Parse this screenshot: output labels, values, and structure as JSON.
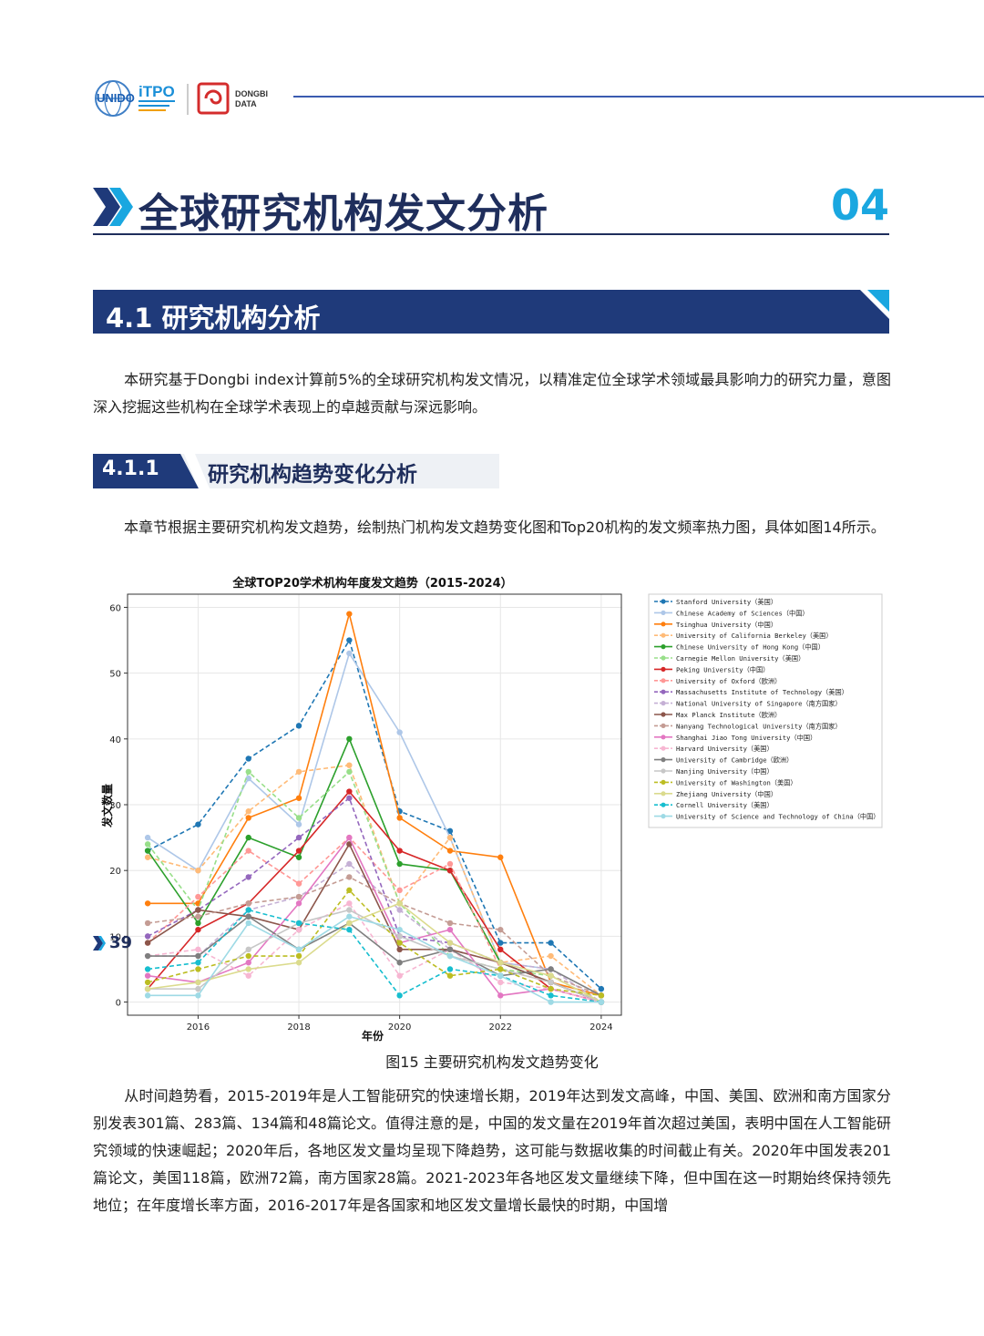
{
  "header": {
    "logos": [
      {
        "name": "UNIDO",
        "text": "UNIDO"
      },
      {
        "name": "ITPO",
        "text": "iTPO"
      },
      {
        "name": "DONGBI DATA",
        "line1": "DONGBI",
        "line2": "DATA"
      }
    ]
  },
  "chapter": {
    "title": "全球研究机构发文分析",
    "number": "04"
  },
  "section": {
    "title": "4.1 研究机构分析"
  },
  "para1": "本研究基于Dongbi index计算前5%的全球研究机构发文情况，以精准定位全球学术领域最具影响力的研究力量，意图深入挖掘这些机构在全球学术表现上的卓越贡献与深远影响。",
  "subsection": {
    "number": "4.1.1",
    "title": "研究机构趋势变化分析"
  },
  "para2": "本章节根据主要研究机构发文趋势，绘制热门机构发文趋势变化图和Top20机构的发文频率热力图，具体如图14所示。",
  "figure_caption": "图15 主要研究机构发文趋势变化",
  "para3": "从时间趋势看，2015-2019年是人工智能研究的快速增长期，2019年达到发文高峰，中国、美国、欧洲和南方国家分别发表301篇、283篇、134篇和48篇论文。值得注意的是，中国的发文量在2019年首次超过美国，表明中国在人工智能研究领域的快速崛起；2020年后，各地区发文量均呈现下降趋势，这可能与数据收集的时间截止有关。2020年中国发表201篇论文，美国118篇，欧洲72篇，南方国家28篇。2021-2023年各地区发文量继续下降，但中国在这一时期始终保持领先地位；在年度增长率方面，2016-2017年是各国家和地区发文量增长最快的时期，中国增",
  "page_number": "39",
  "chart_data": {
    "type": "line",
    "title": "全球TOP20学术机构年度发文趋势（2015-2024）",
    "xlabel": "年份",
    "ylabel": "发文数量",
    "x": [
      2015,
      2016,
      2017,
      2018,
      2019,
      2020,
      2021,
      2022,
      2023,
      2024
    ],
    "xticks": [
      2016,
      2018,
      2020,
      2022,
      2024
    ],
    "yticks": [
      0,
      10,
      20,
      30,
      40,
      50,
      60
    ],
    "ylim": [
      -2,
      62
    ],
    "xlim": [
      2014.6,
      2024.4
    ],
    "grid": true,
    "legend_position": "right-outside",
    "series": [
      {
        "name": "Stanford University（美国）",
        "color": "#1f77b4",
        "dash": true,
        "values": [
          23,
          27,
          37,
          42,
          55,
          29,
          26,
          9,
          9,
          2
        ]
      },
      {
        "name": "Chinese Academy of Sciences（中国）",
        "color": "#aec7e8",
        "dash": false,
        "values": [
          25,
          20,
          34,
          27,
          53,
          41,
          25,
          6,
          5,
          1
        ]
      },
      {
        "name": "Tsinghua University（中国）",
        "color": "#ff7f0e",
        "dash": false,
        "values": [
          15,
          15,
          28,
          31,
          59,
          28,
          23,
          22,
          3,
          1
        ]
      },
      {
        "name": "University of California Berkeley（美国）",
        "color": "#ffbb78",
        "dash": true,
        "values": [
          22,
          20,
          29,
          35,
          36,
          15,
          25,
          6,
          7,
          1
        ]
      },
      {
        "name": "Chinese University of Hong Kong（中国）",
        "color": "#2ca02c",
        "dash": false,
        "values": [
          23,
          12,
          25,
          22,
          40,
          21,
          20,
          6,
          3,
          0
        ]
      },
      {
        "name": "Carnegie Mellon University（美国）",
        "color": "#98df8a",
        "dash": true,
        "values": [
          24,
          14,
          35,
          28,
          35,
          15,
          7,
          5,
          4,
          0
        ]
      },
      {
        "name": "Peking University（中国）",
        "color": "#d62728",
        "dash": false,
        "values": [
          2,
          11,
          15,
          23,
          32,
          23,
          20,
          8,
          2,
          0
        ]
      },
      {
        "name": "University of Oxford（欧洲）",
        "color": "#ff9896",
        "dash": true,
        "values": [
          9,
          16,
          23,
          18,
          25,
          17,
          21,
          5,
          3,
          0
        ]
      },
      {
        "name": "Massachusetts Institute of Technology（美国）",
        "color": "#9467bd",
        "dash": true,
        "values": [
          10,
          14,
          19,
          25,
          31,
          10,
          9,
          6,
          3,
          0
        ]
      },
      {
        "name": "National University of Singapore（南方国家）",
        "color": "#c5b0d5",
        "dash": true,
        "values": [
          7,
          7,
          14,
          16,
          21,
          14,
          8,
          6,
          5,
          0
        ]
      },
      {
        "name": "Max Planck Institute（欧洲）",
        "color": "#8c564b",
        "dash": false,
        "values": [
          9,
          14,
          13,
          11,
          24,
          8,
          8,
          6,
          3,
          0
        ]
      },
      {
        "name": "Nanyang Technological University（南方国家）",
        "color": "#c49c94",
        "dash": true,
        "values": [
          12,
          13,
          15,
          16,
          19,
          15,
          12,
          11,
          4,
          1
        ]
      },
      {
        "name": "Shanghai Jiao Tong University（中国）",
        "color": "#e377c2",
        "dash": false,
        "values": [
          4,
          3,
          6,
          15,
          25,
          9,
          11,
          1,
          2,
          0
        ]
      },
      {
        "name": "Harvard University（美国）",
        "color": "#f7b6d2",
        "dash": true,
        "values": [
          7,
          8,
          4,
          11,
          15,
          4,
          8,
          3,
          2,
          0
        ]
      },
      {
        "name": "University of Cambridge（欧洲）",
        "color": "#7f7f7f",
        "dash": false,
        "values": [
          7,
          7,
          13,
          8,
          12,
          6,
          8,
          4,
          5,
          1
        ]
      },
      {
        "name": "Nanjing University（中国）",
        "color": "#c7c7c7",
        "dash": false,
        "values": [
          2,
          2,
          8,
          12,
          14,
          10,
          7,
          5,
          3,
          0
        ]
      },
      {
        "name": "University of Washington（美国）",
        "color": "#bcbd22",
        "dash": true,
        "values": [
          3,
          5,
          7,
          7,
          17,
          9,
          4,
          5,
          2,
          1
        ]
      },
      {
        "name": "Zhejiang University（中国）",
        "color": "#dbdb8d",
        "dash": false,
        "values": [
          2,
          3,
          5,
          6,
          12,
          15,
          9,
          6,
          4,
          0
        ]
      },
      {
        "name": "Cornell University（美国）",
        "color": "#17becf",
        "dash": true,
        "values": [
          5,
          6,
          14,
          12,
          11,
          1,
          5,
          4,
          1,
          0
        ]
      },
      {
        "name": "University of Science and Technology of China（中国）",
        "color": "#9edae5",
        "dash": false,
        "values": [
          1,
          1,
          12,
          8,
          13,
          11,
          7,
          4,
          0,
          0
        ]
      }
    ]
  }
}
